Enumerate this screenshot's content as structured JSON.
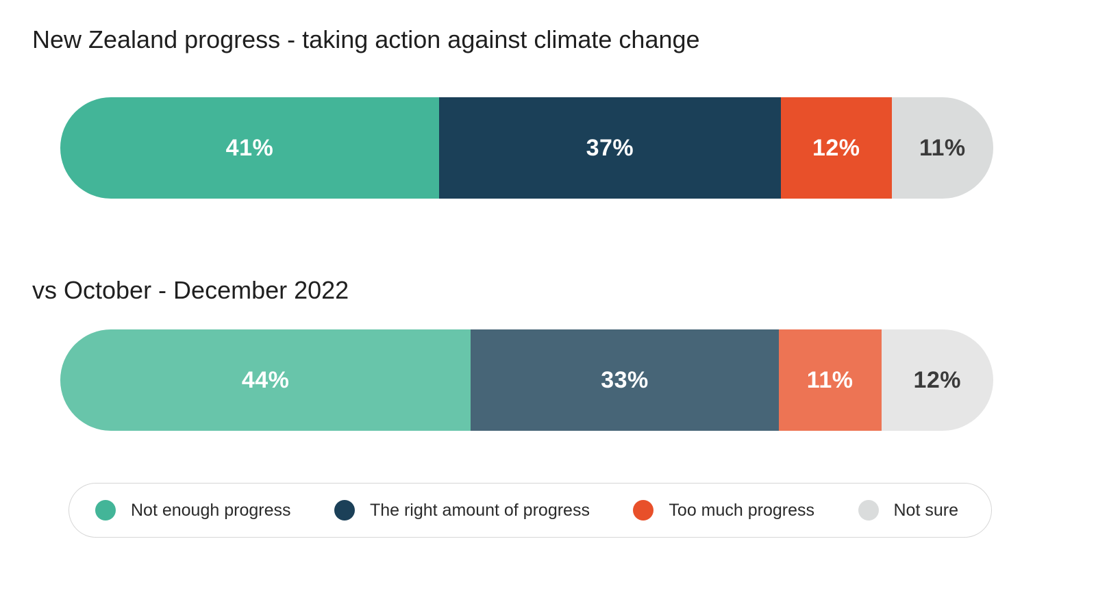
{
  "chart_data": {
    "type": "bar",
    "orientation": "horizontal",
    "stacked": true,
    "title": "New Zealand progress - taking action against climate change",
    "categories": [
      "Not enough progress",
      "The right amount of progress",
      "Too much progress",
      "Not sure"
    ],
    "rows": [
      {
        "label": "",
        "values": [
          41,
          37,
          12,
          11
        ],
        "display": [
          "41%",
          "37%",
          "12%",
          "11%"
        ],
        "colors": [
          "#43b598",
          "#1b4058",
          "#e8502a",
          "#dadcdc"
        ],
        "text_colors": [
          "#ffffff",
          "#ffffff",
          "#ffffff",
          "#3a3a3a"
        ]
      },
      {
        "label": "vs October - December 2022",
        "values": [
          44,
          33,
          11,
          12
        ],
        "display": [
          "44%",
          "33%",
          "11%",
          "12%"
        ],
        "colors": [
          "#68c5aa",
          "#476577",
          "#ed7454",
          "#e6e6e6"
        ],
        "text_colors": [
          "#ffffff",
          "#ffffff",
          "#ffffff",
          "#3a3a3a"
        ]
      }
    ],
    "legend": {
      "placement": "bottom",
      "items": [
        {
          "label": "Not enough progress",
          "color": "#43b598"
        },
        {
          "label": "The right amount of progress",
          "color": "#1b4058"
        },
        {
          "label": "Too much progress",
          "color": "#e8502a"
        },
        {
          "label": "Not sure",
          "color": "#dadcdc"
        }
      ]
    }
  }
}
